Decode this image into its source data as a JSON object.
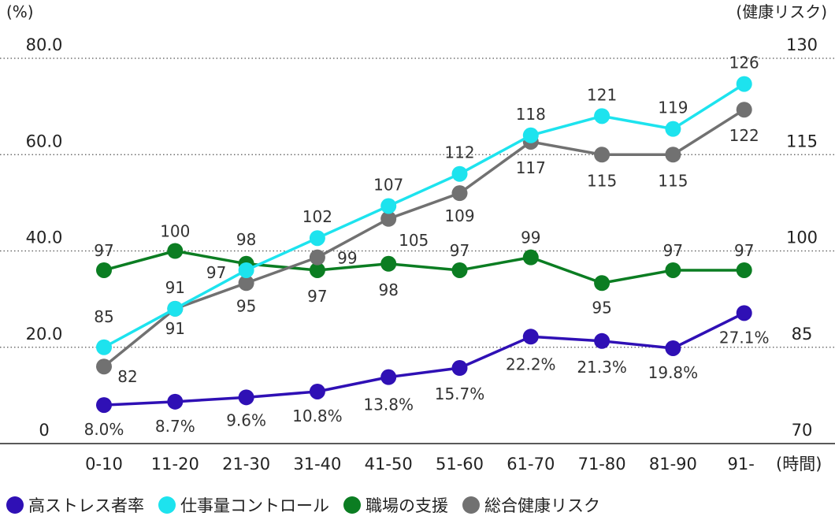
{
  "colors": {
    "high_stress": "#2f10b5",
    "workload_control": "#1de3ee",
    "workplace_support": "#0b7d22",
    "total_risk": "#717171",
    "axis": "#222222",
    "grid": "#555555"
  },
  "chart_data": {
    "type": "line",
    "categories": [
      "0-10",
      "11-20",
      "21-30",
      "31-40",
      "41-50",
      "51-60",
      "61-70",
      "71-80",
      "81-90",
      "91-"
    ],
    "x_unit_label": "(時間)",
    "left_axis": {
      "unit_label": "(%)",
      "ylim": [
        0,
        80
      ],
      "ticks": [
        "0",
        "20.0",
        "40.0",
        "60.0",
        "80.0"
      ]
    },
    "right_axis": {
      "unit_label": "(健康リスク)",
      "ylim": [
        70,
        130
      ],
      "ticks": [
        "70",
        "85",
        "100",
        "115",
        "130"
      ]
    },
    "grid": "horizontal-dotted",
    "legend_position": "bottom",
    "series": [
      {
        "name": "高ストレス者率",
        "axis": "left",
        "color_key": "high_stress",
        "values": [
          8.0,
          8.7,
          9.6,
          10.8,
          13.8,
          15.7,
          22.2,
          21.3,
          19.8,
          27.1
        ],
        "labels": [
          "8.0%",
          "8.7%",
          "9.6%",
          "10.8%",
          "13.8%",
          "15.7%",
          "22.2%",
          "21.3%",
          "19.8%",
          "27.1%"
        ]
      },
      {
        "name": "仕事量コントロール",
        "axis": "right",
        "color_key": "workload_control",
        "values": [
          85,
          91,
          97,
          102,
          107,
          112,
          118,
          121,
          119,
          126
        ],
        "labels": [
          "85",
          "91",
          "97",
          "102",
          "107",
          "112",
          "118",
          "121",
          "119",
          "126"
        ]
      },
      {
        "name": "職場の支援",
        "axis": "right",
        "color_key": "workplace_support",
        "values": [
          97,
          100,
          98,
          97,
          98,
          97,
          99,
          95,
          97,
          97
        ],
        "labels": [
          "97",
          "100",
          "98",
          "97",
          "98",
          "97",
          "99",
          "95",
          "97",
          "97"
        ]
      },
      {
        "name": "総合健康リスク",
        "axis": "right",
        "color_key": "total_risk",
        "values": [
          82,
          91,
          95,
          99,
          105,
          109,
          117,
          115,
          115,
          122
        ],
        "labels": [
          "82",
          "91",
          "95",
          "99",
          "105",
          "109",
          "117",
          "115",
          "115",
          "122"
        ]
      }
    ]
  }
}
